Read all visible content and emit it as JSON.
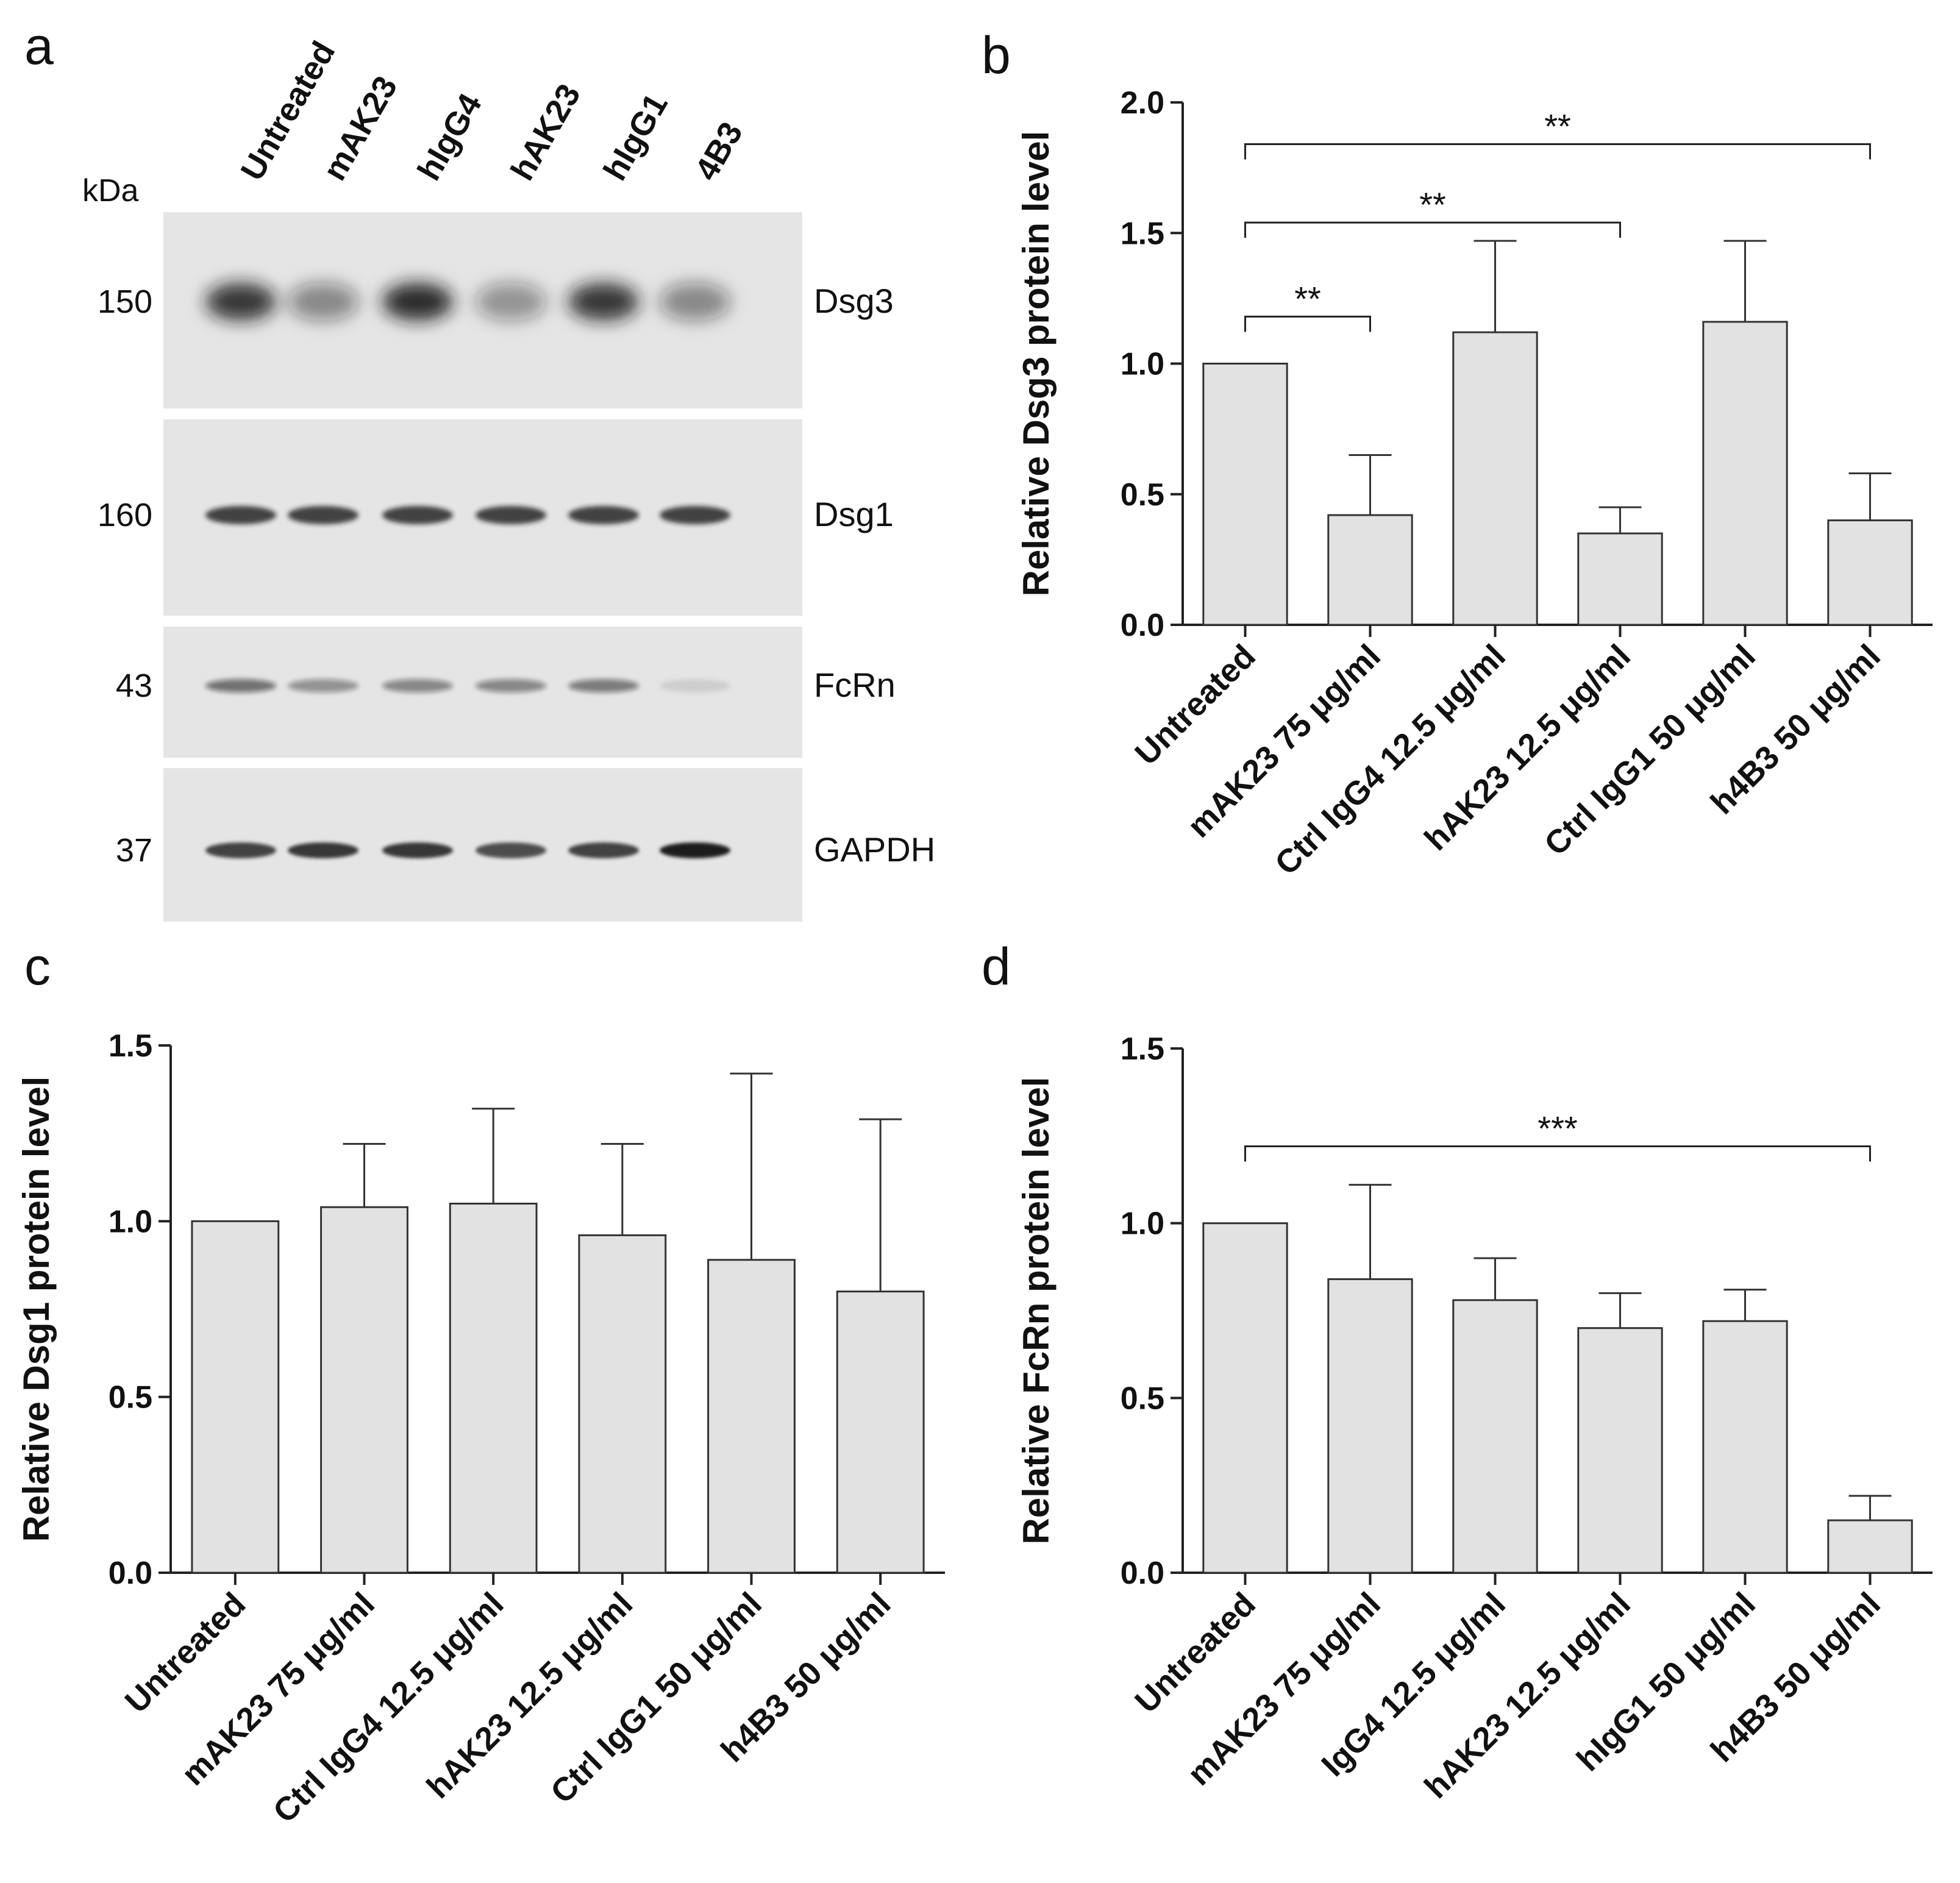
{
  "panels": {
    "a": {
      "letter": "a",
      "kda_label": "kDa",
      "lanes": [
        "Untreated",
        "mAK23",
        "hIgG4",
        "hAK23",
        "hIgG1",
        "4B3"
      ],
      "blots": [
        {
          "protein": "Dsg3",
          "kda": "150",
          "intensities": [
            0.85,
            0.45,
            0.9,
            0.4,
            0.85,
            0.45
          ]
        },
        {
          "protein": "Dsg1",
          "kda": "160",
          "intensities": [
            0.8,
            0.8,
            0.8,
            0.8,
            0.8,
            0.8
          ]
        },
        {
          "protein": "FcRn",
          "kda": "43",
          "intensities": [
            0.55,
            0.4,
            0.45,
            0.45,
            0.5,
            0.1
          ]
        },
        {
          "protein": "GAPDH",
          "kda": "37",
          "intensities": [
            0.8,
            0.85,
            0.85,
            0.75,
            0.8,
            1.0
          ]
        }
      ]
    },
    "b": {
      "letter": "b"
    },
    "c": {
      "letter": "c"
    },
    "d": {
      "letter": "d"
    }
  },
  "chart_data": [
    {
      "panel": "b",
      "type": "bar",
      "ylabel": "Relative Dsg3 protein level",
      "xlabel": "",
      "ylim": [
        0,
        2.0
      ],
      "yticks": [
        "0.0",
        "0.5",
        "1.0",
        "1.5",
        "2.0"
      ],
      "categories": [
        "Untreated",
        "mAK23 75 μg/ml",
        "Ctrl IgG4 12.5 μg/ml",
        "hAK23 12.5 μg/ml",
        "Ctrl IgG1 50 μg/ml",
        "h4B3 50 μg/ml"
      ],
      "values": [
        1.0,
        0.42,
        1.12,
        0.35,
        1.16,
        0.4
      ],
      "errors": [
        0,
        0.23,
        0.35,
        0.1,
        0.31,
        0.18
      ],
      "annotations": [
        {
          "from": 0,
          "to": 1,
          "y": 1.18,
          "label": "**"
        },
        {
          "from": 0,
          "to": 3,
          "y": 1.54,
          "label": "**"
        },
        {
          "from": 0,
          "to": 5,
          "y": 1.84,
          "label": "**"
        }
      ]
    },
    {
      "panel": "c",
      "type": "bar",
      "ylabel": "Relative Dsg1 protein level",
      "xlabel": "",
      "ylim": [
        0,
        1.5
      ],
      "yticks": [
        "0.0",
        "0.5",
        "1.0",
        "1.5"
      ],
      "categories": [
        "Untreated",
        "mAK23 75 μg/ml",
        "Ctrl IgG4 12.5 μg/ml",
        "hAK23 12.5 μg/ml",
        "Ctrl IgG1 50 μg/ml",
        "h4B3 50 μg/ml"
      ],
      "values": [
        1.0,
        1.04,
        1.05,
        0.96,
        0.89,
        0.8
      ],
      "errors": [
        0,
        0.18,
        0.27,
        0.26,
        0.53,
        0.49
      ],
      "annotations": []
    },
    {
      "panel": "d",
      "type": "bar",
      "ylabel": "Relative FcRn protein level",
      "xlabel": "",
      "ylim": [
        0,
        1.5
      ],
      "yticks": [
        "0.0",
        "0.5",
        "1.0",
        "1.5"
      ],
      "categories": [
        "Untreated",
        "mAK23 75 μg/ml",
        "IgG4 12.5 μg/ml",
        "hAK23 12.5 μg/ml",
        "hIgG1 50 μg/ml",
        "h4B3 50 μg/ml"
      ],
      "values": [
        1.0,
        0.84,
        0.78,
        0.7,
        0.72,
        0.15
      ],
      "errors": [
        0,
        0.27,
        0.12,
        0.1,
        0.09,
        0.07
      ],
      "annotations": [
        {
          "from": 0,
          "to": 5,
          "y": 1.22,
          "label": "***"
        }
      ]
    }
  ],
  "colors": {
    "bar_fill": "#e2e2e2",
    "bar_stroke": "#333333",
    "axis": "#222222",
    "text": "#111111",
    "blot_bg": "#e5e5e5",
    "band": "#1a1a1a"
  }
}
